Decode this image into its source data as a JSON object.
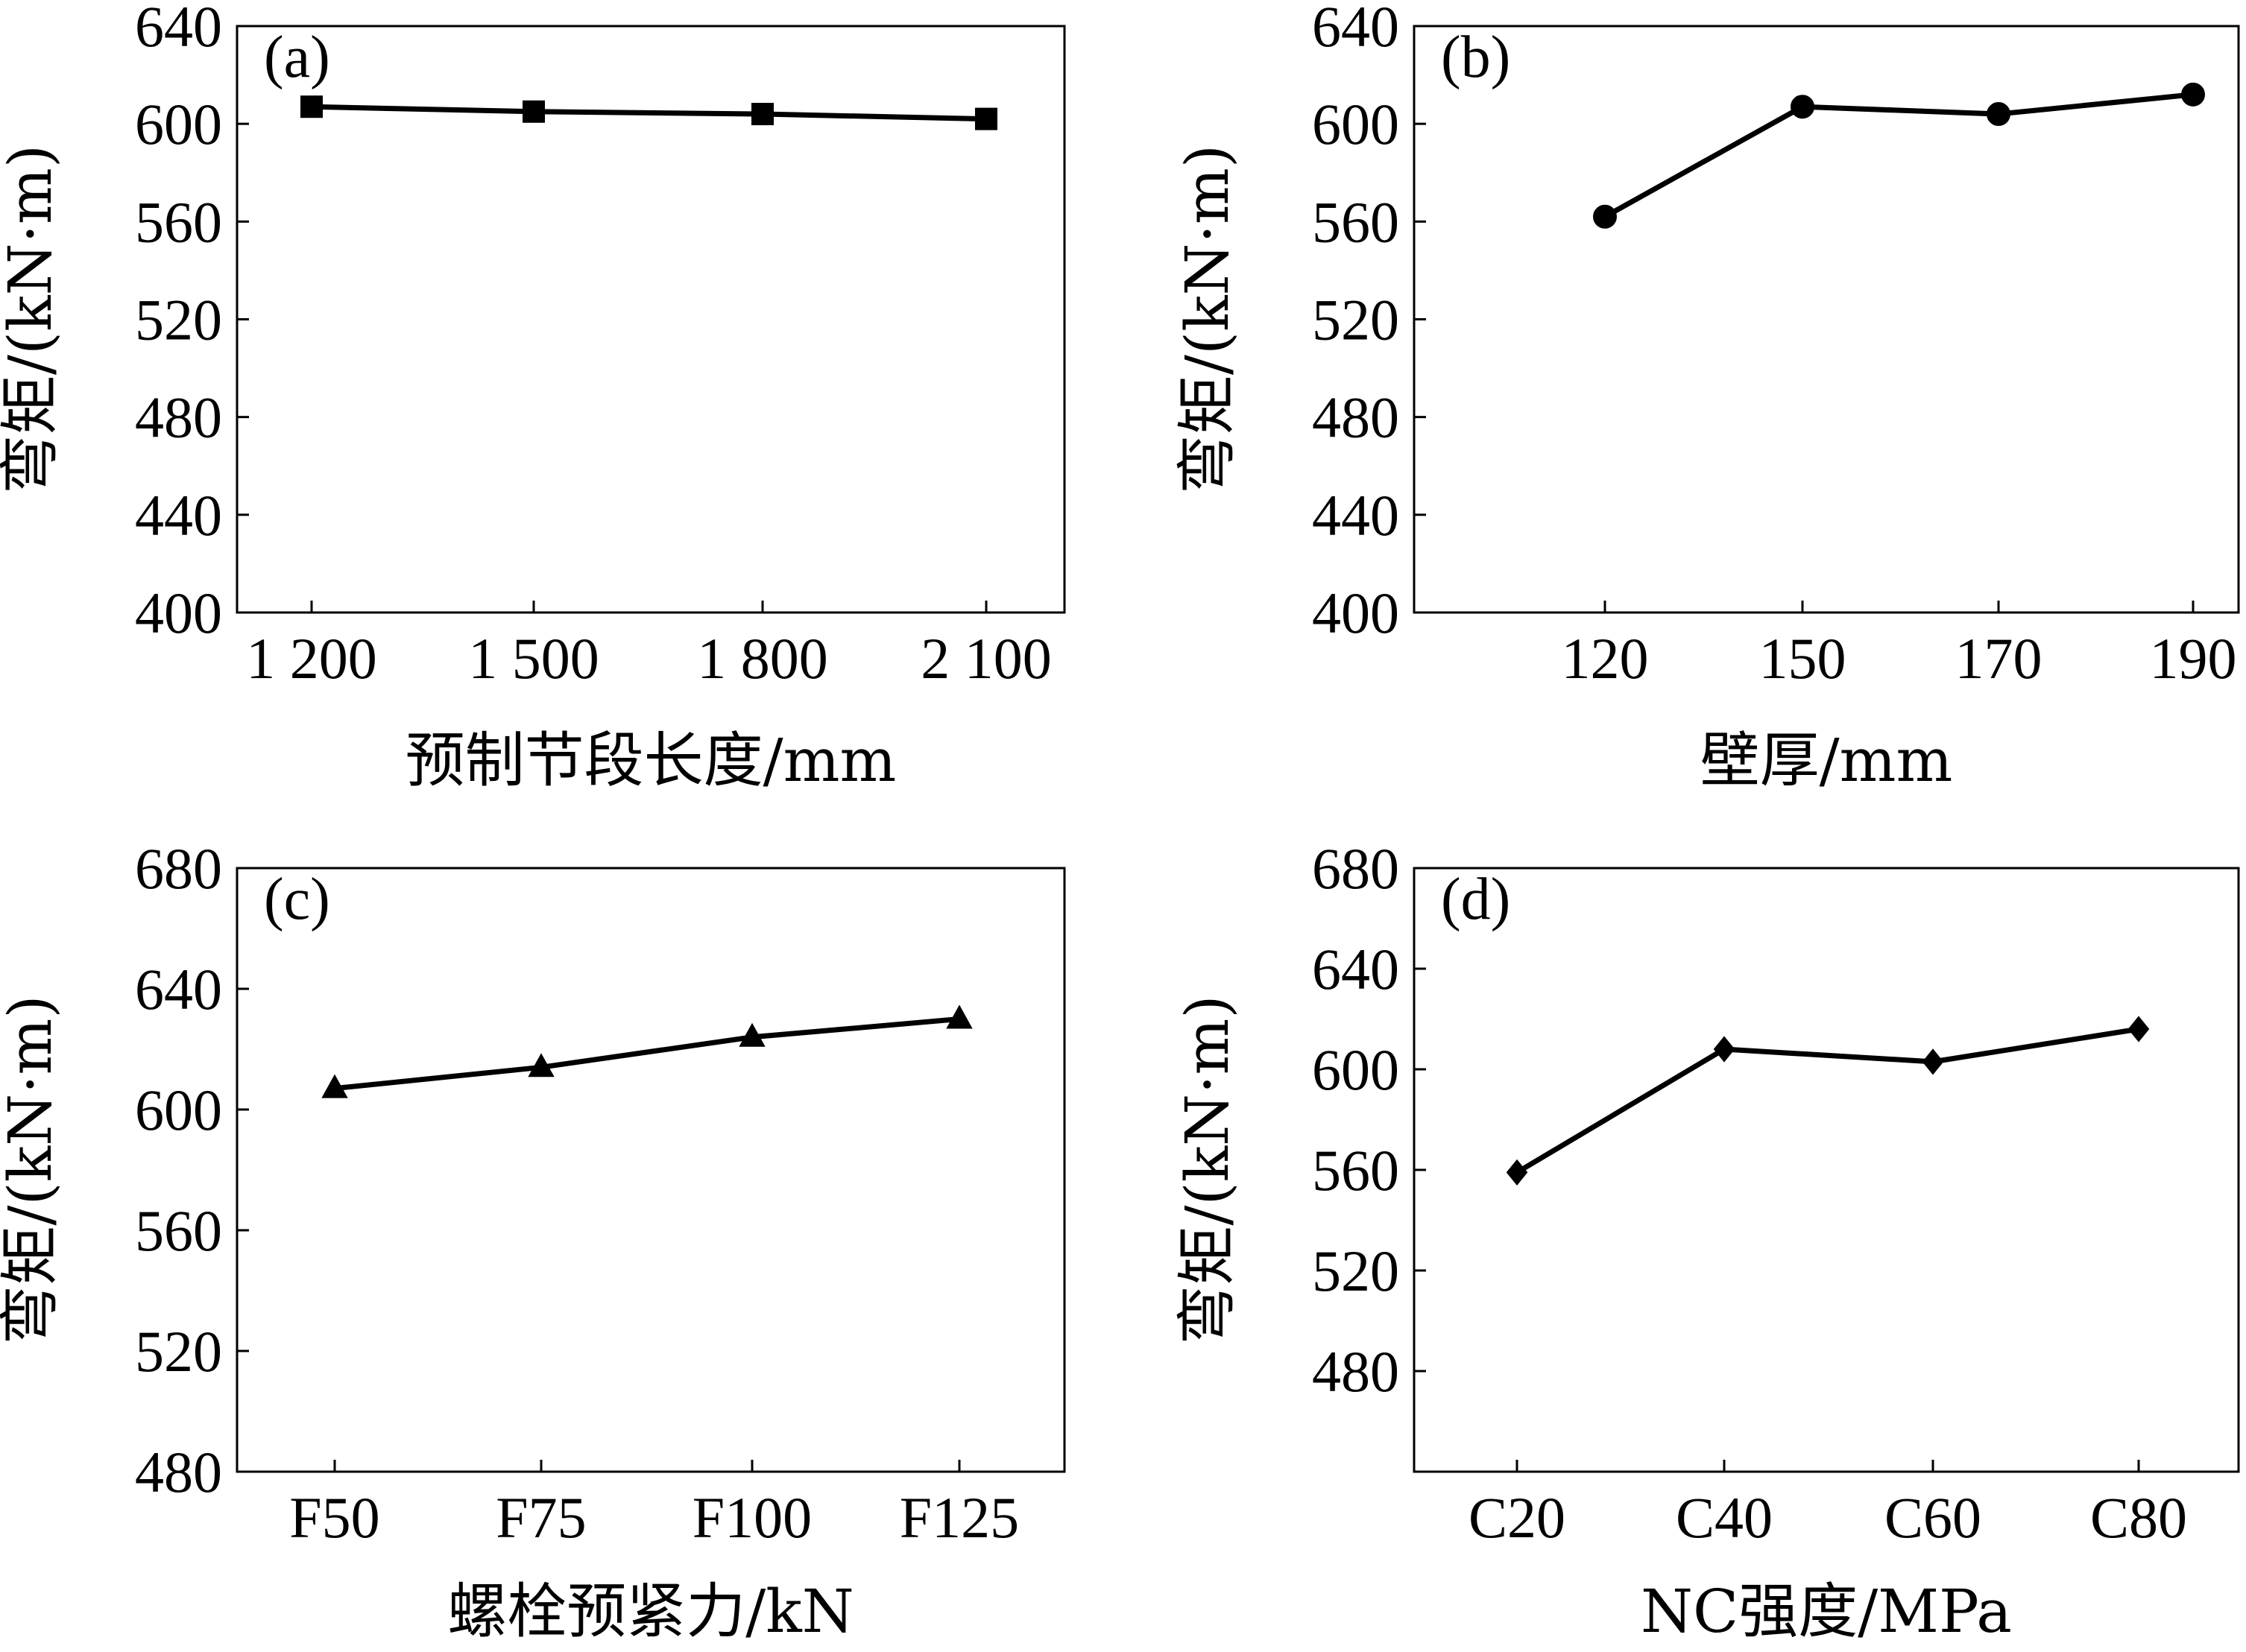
{
  "chart_data": [
    {
      "type": "line",
      "panel_label": "(a)",
      "categories": [
        "1 200",
        "1 500",
        "1 800",
        "2 100"
      ],
      "values": [
        607,
        605,
        604,
        602
      ],
      "marker": "square",
      "xlabel": "预制节段长度/mm",
      "ylabel": "弯矩/(kN·m)",
      "ylim": [
        400,
        640
      ],
      "yticks": [
        "400",
        "440",
        "480",
        "520",
        "560",
        "600",
        "640"
      ],
      "grid": false
    },
    {
      "type": "line",
      "panel_label": "(b)",
      "categories": [
        "120",
        "150",
        "170",
        "190"
      ],
      "values": [
        562,
        607,
        604,
        612
      ],
      "marker": "circle",
      "xlabel": "壁厚/mm",
      "ylabel": "弯矩/(kN·m)",
      "ylim": [
        400,
        640
      ],
      "yticks": [
        "400",
        "440",
        "480",
        "520",
        "560",
        "600",
        "640"
      ],
      "grid": false
    },
    {
      "type": "line",
      "panel_label": "(c)",
      "categories": [
        "F50",
        "F75",
        "F100",
        "F125"
      ],
      "values": [
        607,
        614,
        624,
        630
      ],
      "marker": "triangle",
      "xlabel": "螺栓预紧力/kN",
      "ylabel": "弯矩/(kN·m)",
      "ylim": [
        480,
        680
      ],
      "yticks": [
        "480",
        "520",
        "560",
        "600",
        "640",
        "680"
      ],
      "grid": false
    },
    {
      "type": "line",
      "panel_label": "(d)",
      "categories": [
        "C20",
        "C40",
        "C60",
        "C80"
      ],
      "values": [
        559,
        608,
        603,
        616
      ],
      "marker": "diamond",
      "xlabel": "NC强度/MPa",
      "ylabel": "弯矩/(kN·m)",
      "ylim": [
        440,
        680
      ],
      "yticks": [
        "480",
        "520",
        "560",
        "600",
        "640",
        "680"
      ],
      "grid": false
    }
  ]
}
